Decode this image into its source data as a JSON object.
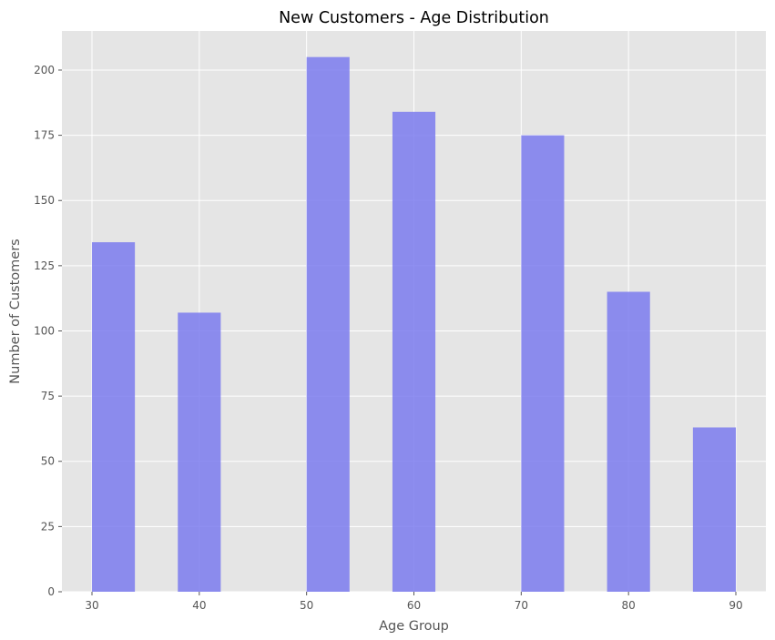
{
  "chart_data": {
    "type": "bar",
    "title": "New Customers - Age Distribution",
    "xlabel": "Age Group",
    "ylabel": "Number of Customers",
    "bins": [
      {
        "start": 30,
        "end": 34,
        "value": 134
      },
      {
        "start": 38,
        "end": 42,
        "value": 107
      },
      {
        "start": 50,
        "end": 54,
        "value": 205
      },
      {
        "start": 58,
        "end": 62,
        "value": 184
      },
      {
        "start": 70,
        "end": 74,
        "value": 175
      },
      {
        "start": 78,
        "end": 82,
        "value": 115
      },
      {
        "start": 86,
        "end": 90,
        "value": 63
      }
    ],
    "xlim": [
      27.2,
      92.8
    ],
    "ylim": [
      0,
      215
    ],
    "xticks": [
      30,
      40,
      50,
      60,
      70,
      80,
      90
    ],
    "xtick_labels": [
      "30",
      "40",
      "50",
      "60",
      "70",
      "80",
      "90"
    ],
    "yticks": [
      0,
      25,
      50,
      75,
      100,
      125,
      150,
      175,
      200
    ],
    "ytick_labels": [
      "0",
      "25",
      "50",
      "75",
      "100",
      "125",
      "150",
      "175",
      "200"
    ],
    "grid": true,
    "colors": {
      "bar": "#7b7bef",
      "plot_background": "#e5e5e5",
      "grid": "#ffffff"
    }
  }
}
